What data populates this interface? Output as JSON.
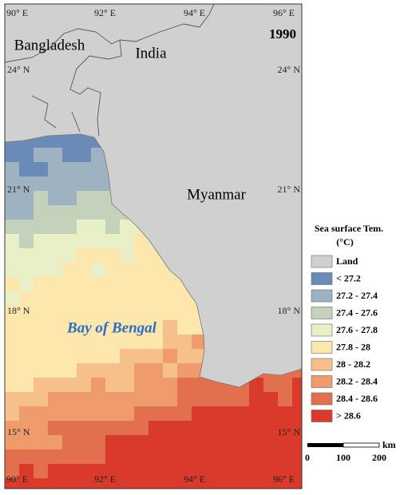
{
  "map": {
    "year": "1990",
    "place_labels": [
      "Bangladesh",
      "India",
      "Myanmar",
      "Bay of Bengal"
    ],
    "lon_labels_top": [
      "90° E",
      "92° E",
      "94° E",
      "96° E"
    ],
    "lon_labels_bottom": [
      "90° E",
      "92° E",
      "94° E",
      "96° E"
    ],
    "lat_labels_left": [
      "24° N",
      "21° N",
      "18° N",
      "15° N"
    ],
    "lat_labels_right": [
      "24° N",
      "21° N",
      "18° N",
      "15° N"
    ]
  },
  "legend": {
    "title": "Sea surface Tem.",
    "unit": "(°C)",
    "items": [
      {
        "label": "Land",
        "color": "#d0d0d0"
      },
      {
        "label": "< 27.2",
        "color": "#6a8ab8"
      },
      {
        "label": "27.2 - 27.4",
        "color": "#9fb2c2"
      },
      {
        "label": "27.4 - 27.6",
        "color": "#c4d2bc"
      },
      {
        "label": "27.6 - 27.8",
        "color": "#e9efc6"
      },
      {
        "label": "27.8 - 28",
        "color": "#fde7ad"
      },
      {
        "label": "28 - 28.2",
        "color": "#f7bf8a"
      },
      {
        "label": "28.2 - 28.4",
        "color": "#ef9b6c"
      },
      {
        "label": "28.4 - 28.6",
        "color": "#e2704f"
      },
      {
        "label": "> 28.6",
        "color": "#d93a2b"
      }
    ]
  },
  "scale_bar": {
    "labels": [
      "0",
      "100",
      "200"
    ],
    "unit": "km"
  }
}
